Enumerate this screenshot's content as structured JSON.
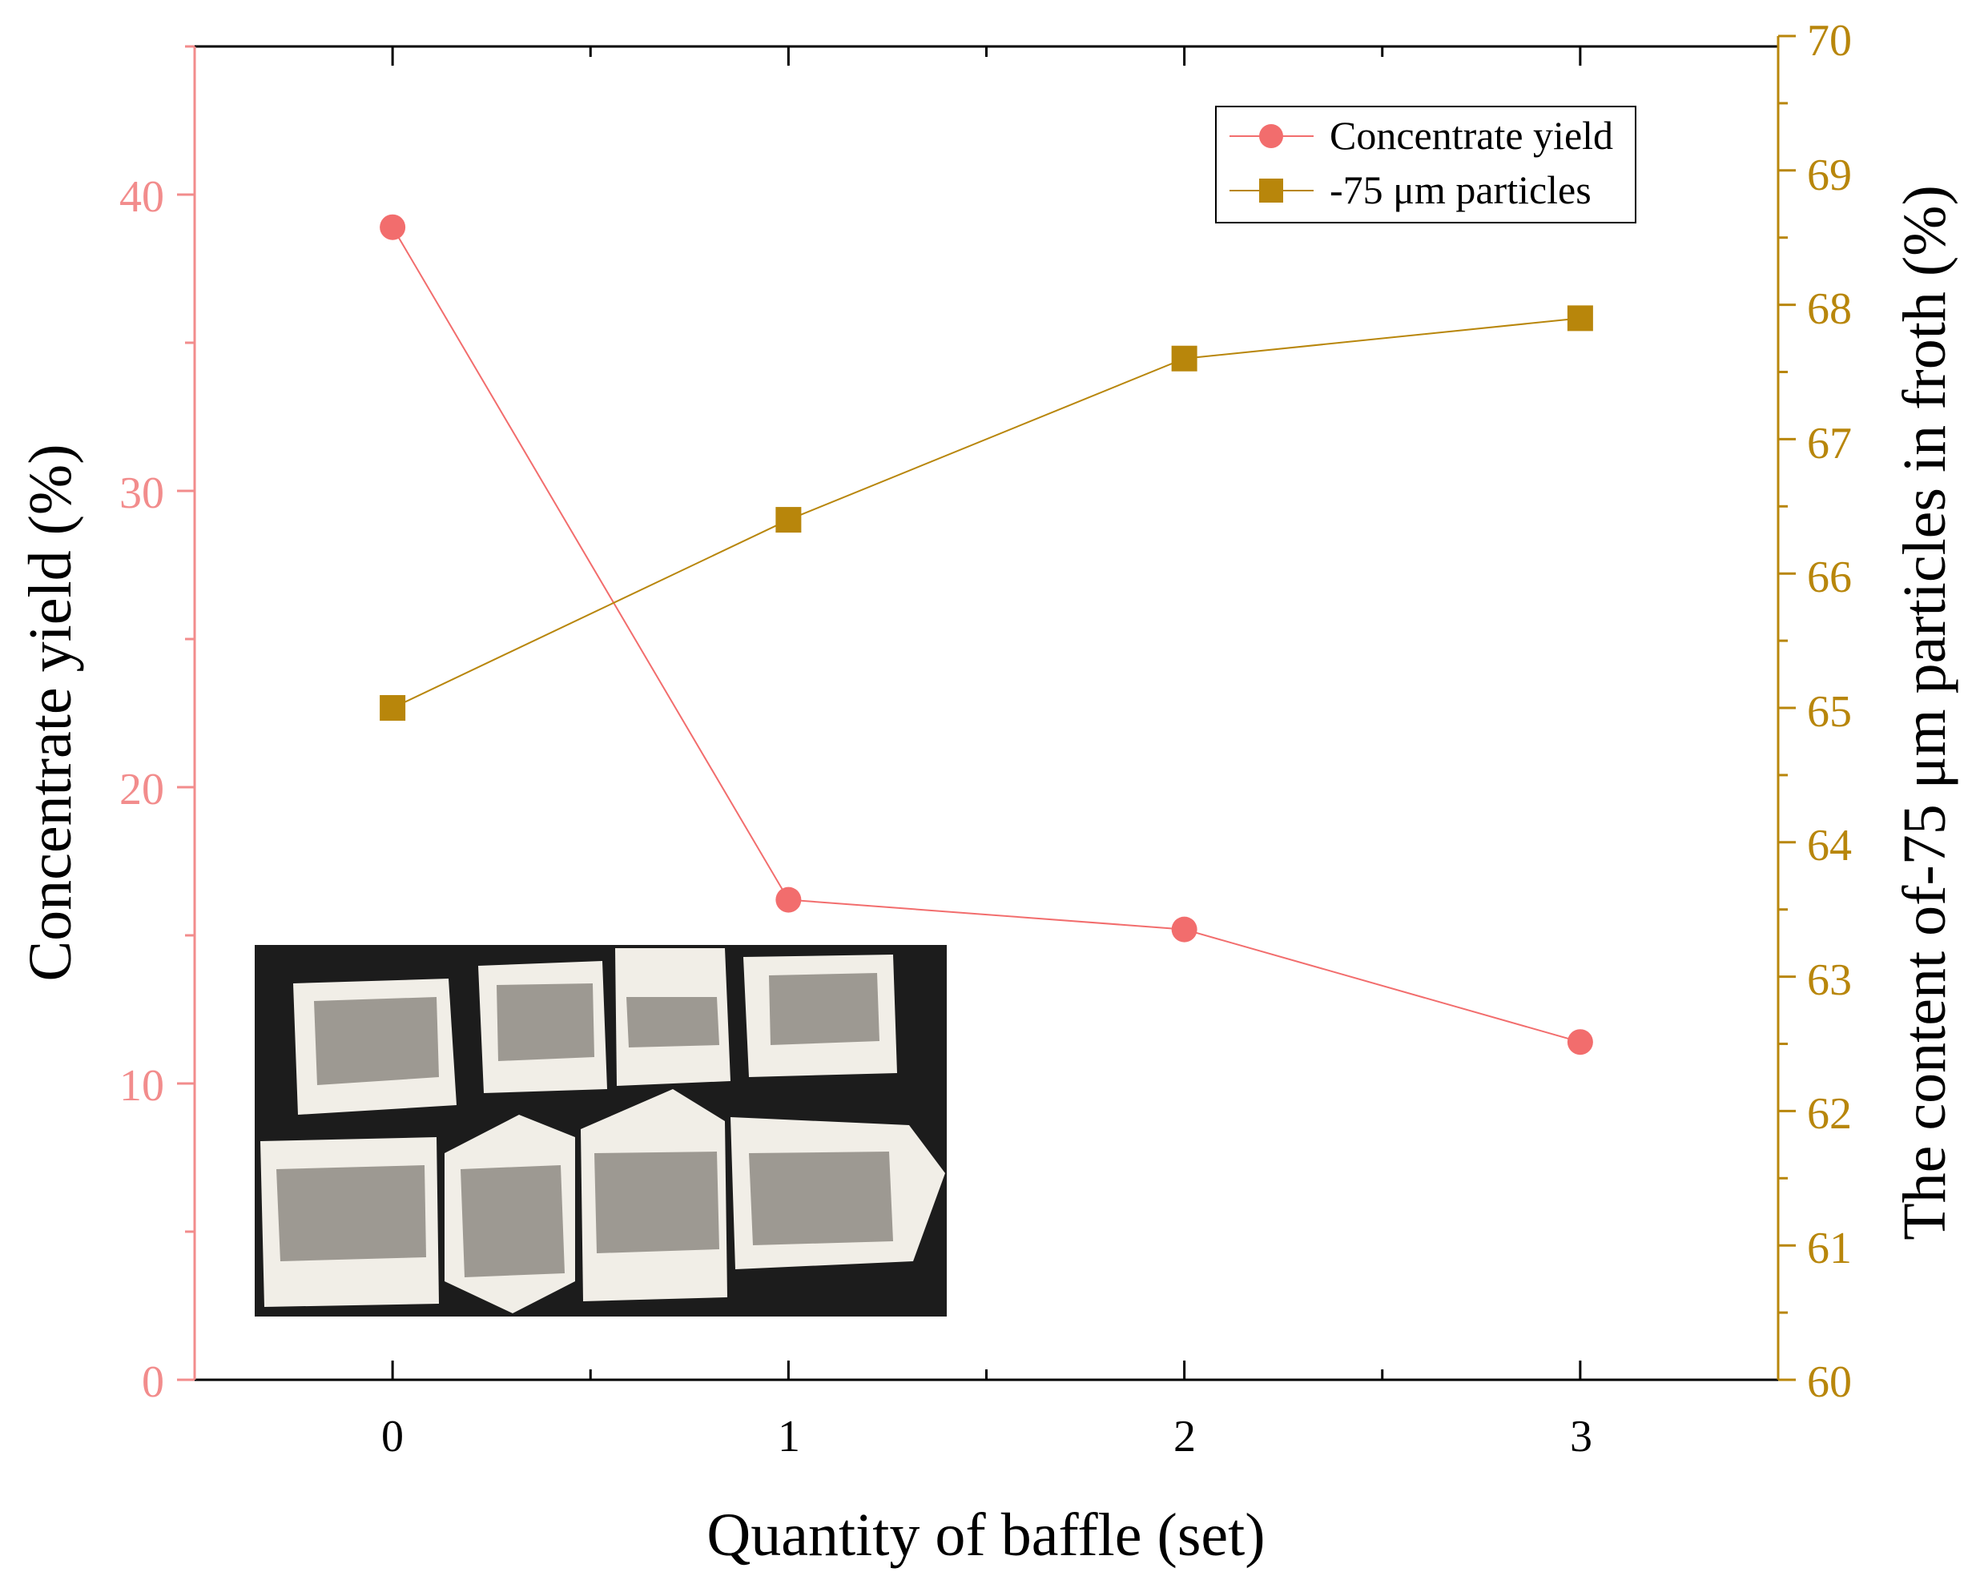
{
  "chart_data": {
    "type": "line",
    "title": "",
    "xlabel": "Quantity of baffle (set)",
    "ylabel": "Concentrate yield (%)",
    "y2label": "The content of-75 μm particles in froth (%)",
    "x": [
      0,
      1,
      2,
      3
    ],
    "x_ticks": [
      "0",
      "1",
      "2",
      "3"
    ],
    "xlim": [
      -0.5,
      3.5
    ],
    "ylim": [
      0,
      45
    ],
    "y_ticks": [
      "0",
      "10",
      "20",
      "30",
      "40"
    ],
    "y2lim": [
      60,
      70
    ],
    "y2_ticks": [
      "60",
      "61",
      "62",
      "63",
      "64",
      "65",
      "66",
      "67",
      "68",
      "69",
      "70"
    ],
    "grid": false,
    "legend_position": "top-right",
    "series": [
      {
        "name": "Concentrate yield",
        "axis": "left",
        "marker": "circle",
        "color": "#f26d6d",
        "values": [
          38.9,
          16.2,
          15.2,
          11.4
        ]
      },
      {
        "name": "-75 μm particles",
        "axis": "right",
        "marker": "square",
        "color": "#b8860b",
        "values": [
          65.0,
          66.4,
          67.6,
          67.9
        ]
      }
    ],
    "inset": {
      "description_icon": "photo-of-eight-paper-sample-boxes"
    }
  },
  "colors": {
    "left_axis": "#f28c8c",
    "right_axis": "#b8860b",
    "series_yield": "#f26d6d",
    "series_particles": "#b8860b",
    "inset_bg": "#1c1c1c",
    "inset_box": "#f1eee7",
    "inset_powder": "#8e8a83"
  }
}
